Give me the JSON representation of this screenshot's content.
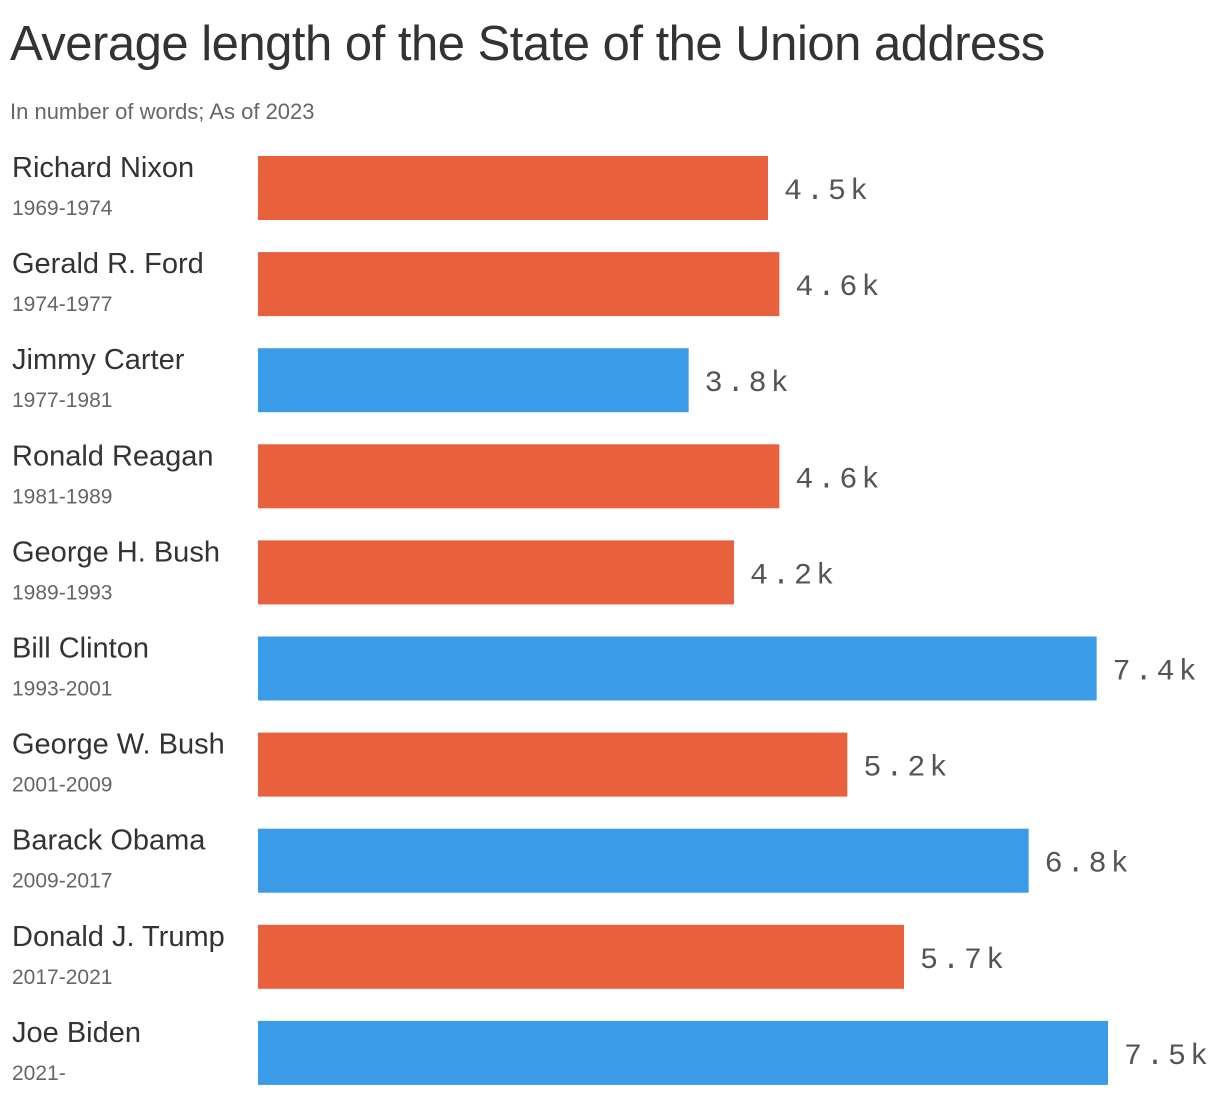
{
  "header": {
    "title": "Average length of the State of the Union address",
    "subtitle": "In number of words; As of 2023"
  },
  "colors": {
    "republican": "#E8603C",
    "democrat": "#3A9BE8"
  },
  "chart_data": {
    "type": "bar",
    "orientation": "horizontal",
    "categories": [
      "Richard Nixon",
      "Gerald R. Ford",
      "Jimmy Carter",
      "Ronald Reagan",
      "George H. Bush",
      "Bill Clinton",
      "George W. Bush",
      "Barack Obama",
      "Donald J. Trump",
      "Joe Biden"
    ],
    "terms": [
      "1969-1974",
      "1974-1977",
      "1977-1981",
      "1981-1989",
      "1989-1993",
      "1993-2001",
      "2001-2009",
      "2009-2017",
      "2017-2021",
      "2021-"
    ],
    "values": [
      4500,
      4600,
      3800,
      4600,
      4200,
      7400,
      5200,
      6800,
      5700,
      7500
    ],
    "labels": [
      "4.5k",
      "4.6k",
      "3.8k",
      "4.6k",
      "4.2k",
      "7.4k",
      "5.2k",
      "6.8k",
      "5.7k",
      "7.5k"
    ],
    "party": [
      "republican",
      "republican",
      "democrat",
      "republican",
      "republican",
      "democrat",
      "republican",
      "democrat",
      "republican",
      "democrat"
    ],
    "xlim": [
      0,
      7500
    ],
    "grid": false,
    "legend": "none",
    "title": "Average length of the State of the Union address",
    "subtitle": "In number of words; As of 2023"
  }
}
